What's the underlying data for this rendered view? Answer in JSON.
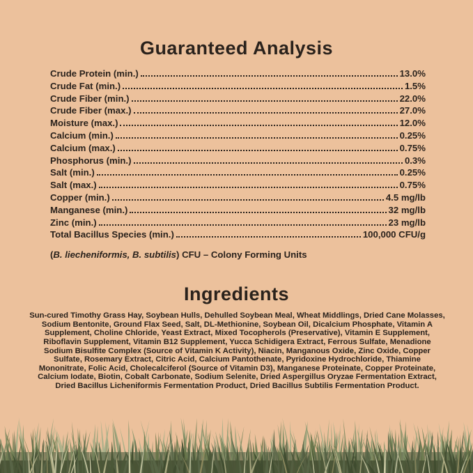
{
  "label": {
    "background_color": "#ecc19c",
    "text_color": "#2a221c"
  },
  "guaranteed_analysis": {
    "title": "Guaranteed Analysis",
    "rows": [
      {
        "label": "Crude Protein (min.)",
        "value": "13.0%"
      },
      {
        "label": "Crude Fat (min.)",
        "value": "1.5%"
      },
      {
        "label": "Crude Fiber (min.)",
        "value": "22.0%"
      },
      {
        "label": "Crude Fiber (max.)",
        "value": "27.0%"
      },
      {
        "label": "Moisture (max.)",
        "value": "12.0%"
      },
      {
        "label": "Calcium (min.)",
        "value": "0.25%"
      },
      {
        "label": "Calcium (max.)",
        "value": "0.75%"
      },
      {
        "label": "Phosphorus (min.)",
        "value": "0.3%"
      },
      {
        "label": "Salt (min.)",
        "value": "0.25%"
      },
      {
        "label": "Salt (max.)",
        "value": "0.75%"
      },
      {
        "label": "Copper (min.)",
        "value": "4.5 mg/lb"
      },
      {
        "label": "Manganese (min.)",
        "value": "32 mg/lb"
      },
      {
        "label": "Zinc (min.)",
        "value": "23 mg/lb"
      },
      {
        "label": "Total Bacillus Species (min.)",
        "value": "100,000 CFU/g"
      }
    ],
    "note": {
      "prefix": "(",
      "species_italic": "B. liecheniformis, B. subtilis",
      "suffix": ") CFU – Colony Forming Units"
    }
  },
  "ingredients": {
    "title": "Ingredients",
    "text": "Sun-cured Timothy Grass Hay, Soybean Hulls, Dehulled Soybean Meal, Wheat Middlings, Dried Cane Molasses, Sodium Bentonite, Ground Flax Seed, Salt, DL-Methionine, Soybean Oil, Dicalcium Phosphate, Vitamin A Supplement, Choline Chloride, Yeast Extract, Mixed Tocopherols (Preservative), Vitamin E Supplement, Riboflavin Supplement, Vitamin B12 Supplement, Yucca Schidigera Extract, Ferrous Sulfate, Menadione Sodium Bisulfite Complex (Source of Vitamin K Activity), Niacin, Manganous Oxide, Zinc Oxide, Copper Sulfate, Rosemary Extract, Citric Acid, Calcium Pantothenate, Pyridoxine Hydrochloride, Thiamine Mononitrate, Folic Acid, Cholecalciferol (Source of Vitamin D3), Manganese Proteinate, Copper Proteinate, Calcium Iodate, Biotin, Cobalt Carbonate, Sodium Selenite, Dried Aspergillus Oryzae Fermentation Extract, Dried Bacillus Licheniformis Fermentation Product, Dried Bacillus Subtilis Fermentation Product."
  },
  "footer_grass": {
    "palette_back": [
      "#9aa37c",
      "#8b9870",
      "#a7b089",
      "#7e8a62"
    ],
    "palette_mid": [
      "#6f7d52",
      "#7b8a61",
      "#667448",
      "#5c684a"
    ],
    "palette_front": [
      "#4b5738",
      "#3f4b2f",
      "#586547",
      "#545e41"
    ],
    "palette_accent": [
      "#c2c3a0",
      "#d0cda8",
      "#b0ae85",
      "#8f8a5f"
    ],
    "base_dark": "#454f33",
    "base_mid": "#5c684a"
  }
}
